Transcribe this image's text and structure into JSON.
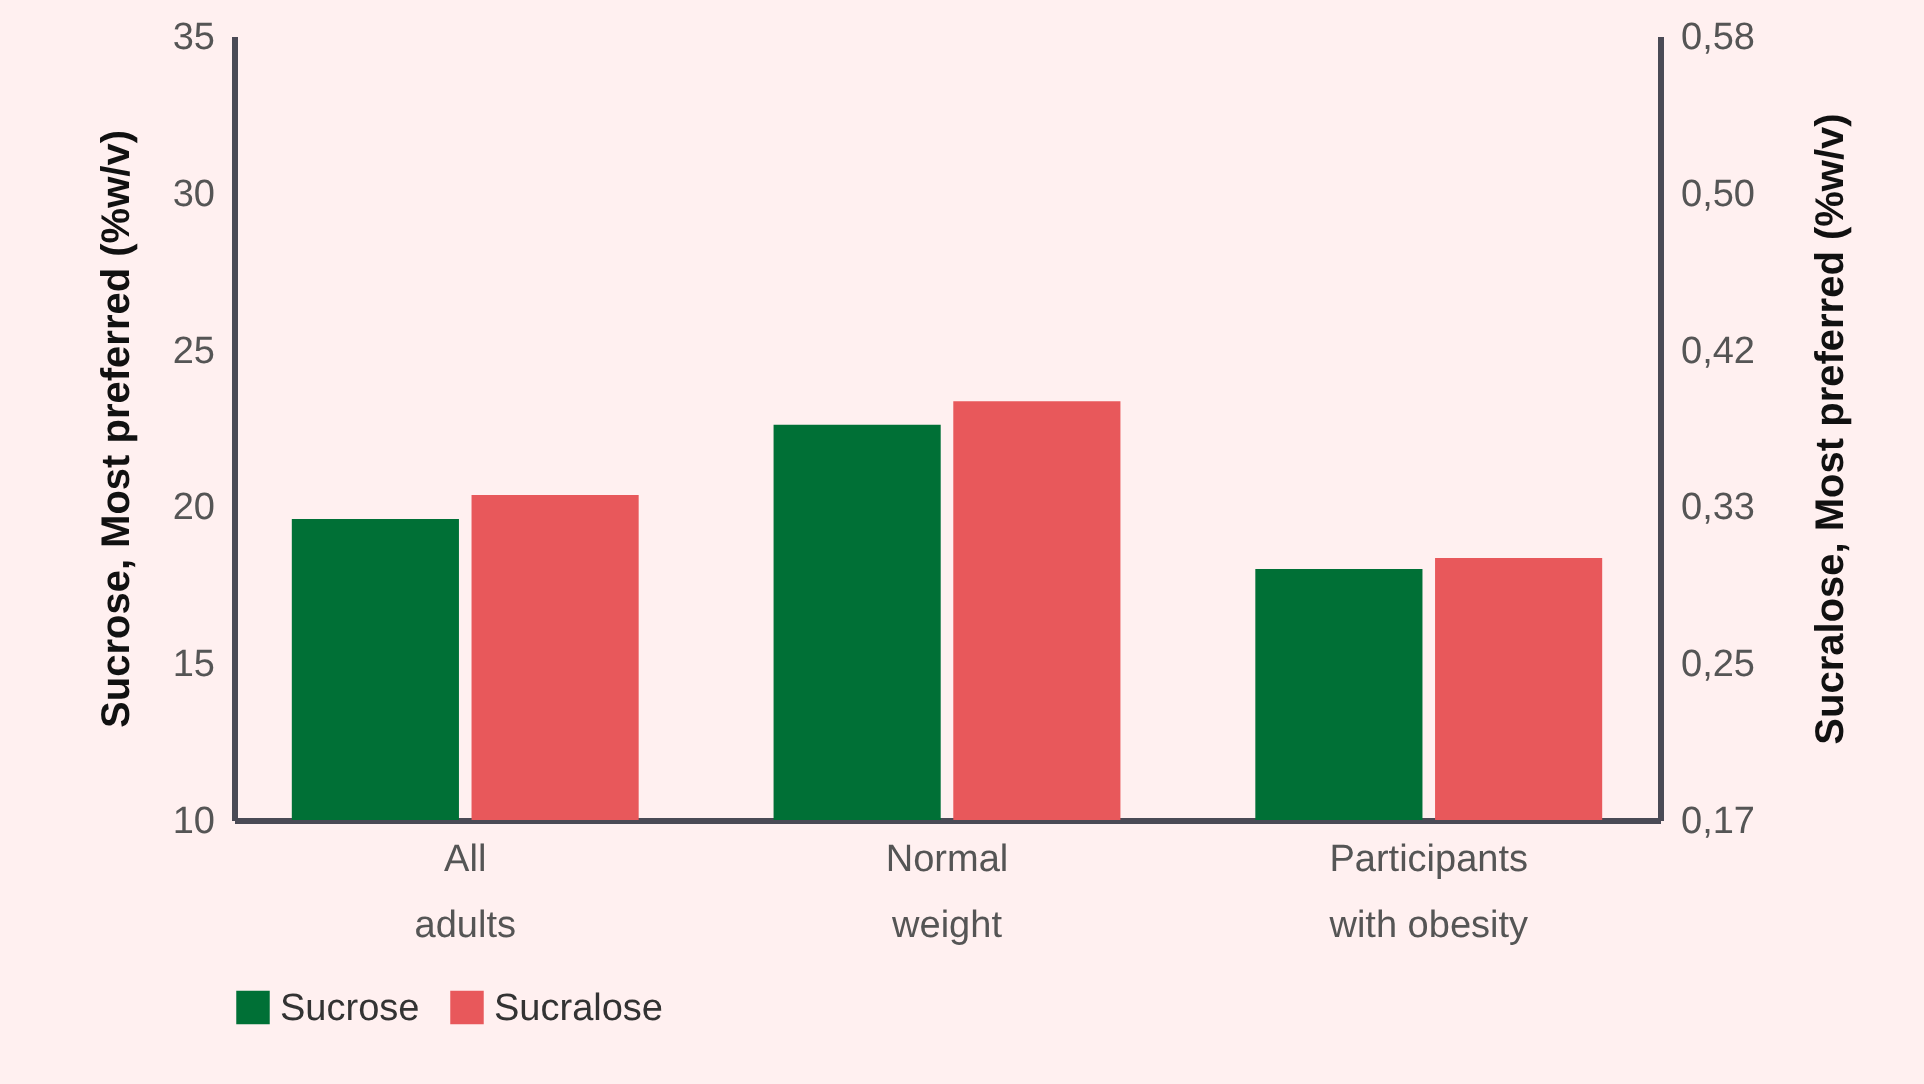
{
  "chart_data": {
    "type": "bar",
    "categories": [
      "All adults",
      "Normal weight",
      "Participants with obesity"
    ],
    "series": [
      {
        "name": "Sucrose",
        "color": "#007036",
        "values": [
          19.6,
          22.6,
          18.0
        ]
      },
      {
        "name": "Sucralose",
        "color": "#e8585b",
        "values": [
          0.34,
          0.389,
          0.307
        ],
        "axis": "y2"
      }
    ],
    "ylabel": "Sucrose, Most preferred (%w/v)",
    "y2label": "Sucralose, Most preferred (%w/v)",
    "ylim": [
      10,
      35
    ],
    "yticks": [
      10,
      15,
      20,
      25,
      30,
      35
    ],
    "y2lim": [
      0.17,
      0.58
    ],
    "y2ticks": [
      {
        "value": 0.17,
        "label": "0,17"
      },
      {
        "value": 0.252,
        "label": "0,25"
      },
      {
        "value": 0.334,
        "label": "0,33"
      },
      {
        "value": 0.416,
        "label": "0,42"
      },
      {
        "value": 0.498,
        "label": "0,50"
      },
      {
        "value": 0.58,
        "label": "0,58"
      }
    ],
    "grid": false,
    "legend": "bottom"
  }
}
